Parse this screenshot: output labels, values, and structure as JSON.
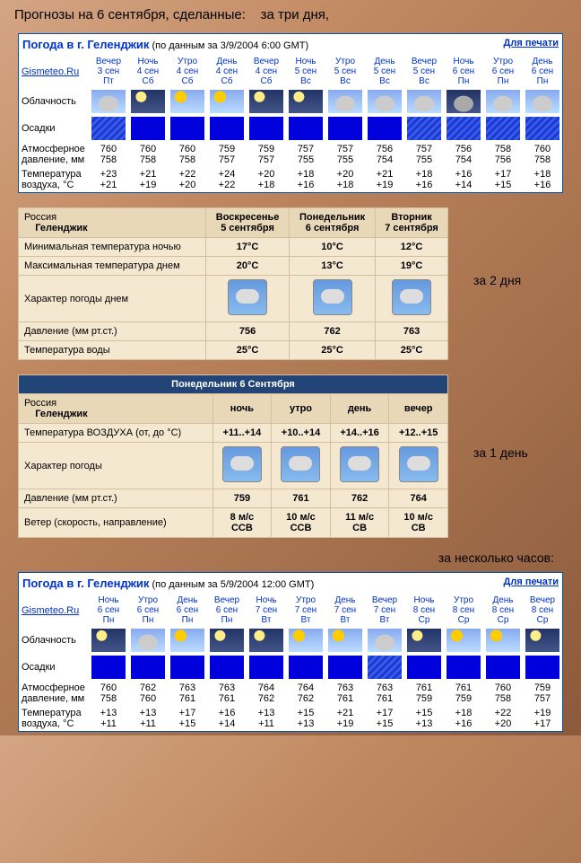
{
  "page_title": "Прогнозы на 6 сентября, сделанные:",
  "page_title_suffix": "за три дня,",
  "labels": {
    "two_days": "за 2 дня",
    "one_day": "за 1 день",
    "few_hours": "за несколько часов:"
  },
  "gismeteo1": {
    "title": "Погода в г. Геленджик",
    "subtitle": "(по данным за 3/9/2004 6:00 GMT)",
    "print": "Для печати",
    "site": "Gismeteo.Ru",
    "cols": [
      {
        "p": "Вечер",
        "d": "3 сен",
        "w": "Пт"
      },
      {
        "p": "Ночь",
        "d": "4 сен",
        "w": "Сб"
      },
      {
        "p": "Утро",
        "d": "4 сен",
        "w": "Сб"
      },
      {
        "p": "День",
        "d": "4 сен",
        "w": "Сб"
      },
      {
        "p": "Вечер",
        "d": "4 сен",
        "w": "Сб"
      },
      {
        "p": "Ночь",
        "d": "5 сен",
        "w": "Вс"
      },
      {
        "p": "Утро",
        "d": "5 сен",
        "w": "Вс"
      },
      {
        "p": "День",
        "d": "5 сен",
        "w": "Вс"
      },
      {
        "p": "Вечер",
        "d": "5 сен",
        "w": "Вс"
      },
      {
        "p": "Ночь",
        "d": "6 сен",
        "w": "Пн"
      },
      {
        "p": "Утро",
        "d": "6 сен",
        "w": "Пн"
      },
      {
        "p": "День",
        "d": "6 сен",
        "w": "Пн"
      }
    ],
    "row_labels": {
      "cloud": "Облачность",
      "precip": "Осадки",
      "pressure": "Атмосферное давление, мм",
      "temp": "Температура воздуха, °С"
    },
    "cloud_icons": [
      "cloud-grey",
      "cloud-night-moon",
      "cloud-day-sun",
      "cloud-day-sun",
      "cloud-night-moon",
      "cloud-night-moon",
      "cloud-grey",
      "cloud-grey",
      "cloud-grey",
      "cloud-night-grey",
      "cloud-grey",
      "cloud-grey"
    ],
    "precip_icons": [
      "precip-rain",
      "precip-blue",
      "precip-blue",
      "precip-blue",
      "precip-blue",
      "precip-blue",
      "precip-blue",
      "precip-blue",
      "precip-rain",
      "precip-rain",
      "precip-rain",
      "precip-rain"
    ],
    "pressure_hi": [
      "760",
      "760",
      "760",
      "759",
      "759",
      "757",
      "757",
      "756",
      "757",
      "756",
      "758",
      "760"
    ],
    "pressure_lo": [
      "758",
      "758",
      "758",
      "757",
      "757",
      "755",
      "755",
      "754",
      "755",
      "754",
      "756",
      "758"
    ],
    "temp_hi": [
      "+23",
      "+21",
      "+22",
      "+24",
      "+20",
      "+18",
      "+20",
      "+21",
      "+18",
      "+16",
      "+17",
      "+18"
    ],
    "temp_lo": [
      "+21",
      "+19",
      "+20",
      "+22",
      "+18",
      "+16",
      "+18",
      "+19",
      "+16",
      "+14",
      "+15",
      "+16"
    ]
  },
  "forecast2": {
    "country": "Россия",
    "city": "Геленджик",
    "cols": [
      {
        "day": "Воскресенье",
        "date": "5 сентября"
      },
      {
        "day": "Понедельник",
        "date": "6 сентября"
      },
      {
        "day": "Вторник",
        "date": "7 сентября"
      }
    ],
    "rows": {
      "min_temp": {
        "label": "Минимальная температура ночью",
        "v": [
          "17°С",
          "10°С",
          "12°С"
        ]
      },
      "max_temp": {
        "label": "Максимальная температура днем",
        "v": [
          "20°С",
          "13°С",
          "19°С"
        ]
      },
      "weather": {
        "label": "Характер погоды днем"
      },
      "pressure": {
        "label": "Давление (мм рт.ст.)",
        "v": [
          "756",
          "762",
          "763"
        ]
      },
      "water": {
        "label": "Температура воды",
        "v": [
          "25°С",
          "25°С",
          "25°С"
        ]
      }
    }
  },
  "forecast3": {
    "header": "Понедельник 6 Сентября",
    "country": "Россия",
    "city": "Геленджик",
    "cols": [
      "ночь",
      "утро",
      "день",
      "вечер"
    ],
    "rows": {
      "temp": {
        "label": "Температура ВОЗДУХА (от, до °С)",
        "v": [
          "+11..+14",
          "+10..+14",
          "+14..+16",
          "+12..+15"
        ]
      },
      "weather": {
        "label": "Характер погоды"
      },
      "pressure": {
        "label": "Давление (мм рт.ст.)",
        "v": [
          "759",
          "761",
          "762",
          "764"
        ]
      },
      "wind": {
        "label": "Ветер (скорость, направление)",
        "v1": [
          "8 м/с",
          "10 м/с",
          "11 м/с",
          "10 м/с"
        ],
        "v2": [
          "ССВ",
          "ССВ",
          "СВ",
          "СВ"
        ]
      }
    }
  },
  "gismeteo2": {
    "title": "Погода в г. Геленджик",
    "subtitle": "(по данным за 5/9/2004 12:00 GMT)",
    "print": "Для печати",
    "site": "Gismeteo.Ru",
    "cols": [
      {
        "p": "Ночь",
        "d": "6 сен",
        "w": "Пн"
      },
      {
        "p": "Утро",
        "d": "6 сен",
        "w": "Пн"
      },
      {
        "p": "День",
        "d": "6 сен",
        "w": "Пн"
      },
      {
        "p": "Вечер",
        "d": "6 сен",
        "w": "Пн"
      },
      {
        "p": "Ночь",
        "d": "7 сен",
        "w": "Вт"
      },
      {
        "p": "Утро",
        "d": "7 сен",
        "w": "Вт"
      },
      {
        "p": "День",
        "d": "7 сен",
        "w": "Вт"
      },
      {
        "p": "Вечер",
        "d": "7 сен",
        "w": "Вт"
      },
      {
        "p": "Ночь",
        "d": "8 сен",
        "w": "Ср"
      },
      {
        "p": "Утро",
        "d": "8 сен",
        "w": "Ср"
      },
      {
        "p": "День",
        "d": "8 сен",
        "w": "Ср"
      },
      {
        "p": "Вечер",
        "d": "8 сен",
        "w": "Ср"
      }
    ],
    "row_labels": {
      "cloud": "Облачность",
      "precip": "Осадки",
      "pressure": "Атмосферное давление, мм",
      "temp": "Температура воздуха, °С"
    },
    "cloud_icons": [
      "cloud-night-moon",
      "cloud-grey",
      "cloud-day-sun",
      "cloud-night-moon",
      "cloud-night-moon",
      "cloud-day-sun",
      "cloud-day-sun",
      "cloud-grey",
      "cloud-night-moon",
      "cloud-day-sun",
      "cloud-day-sun",
      "cloud-night-moon"
    ],
    "precip_icons": [
      "precip-blue",
      "precip-blue",
      "precip-blue",
      "precip-blue",
      "precip-blue",
      "precip-blue",
      "precip-blue",
      "precip-rain",
      "precip-blue",
      "precip-blue",
      "precip-blue",
      "precip-blue"
    ],
    "pressure_hi": [
      "760",
      "762",
      "763",
      "763",
      "764",
      "764",
      "763",
      "763",
      "761",
      "761",
      "760",
      "759"
    ],
    "pressure_lo": [
      "758",
      "760",
      "761",
      "761",
      "762",
      "762",
      "761",
      "761",
      "759",
      "759",
      "758",
      "757"
    ],
    "temp_hi": [
      "+13",
      "+13",
      "+17",
      "+16",
      "+13",
      "+15",
      "+21",
      "+17",
      "+15",
      "+18",
      "+22",
      "+19"
    ],
    "temp_lo": [
      "+11",
      "+11",
      "+15",
      "+14",
      "+11",
      "+13",
      "+19",
      "+15",
      "+13",
      "+16",
      "+20",
      "+17"
    ]
  }
}
